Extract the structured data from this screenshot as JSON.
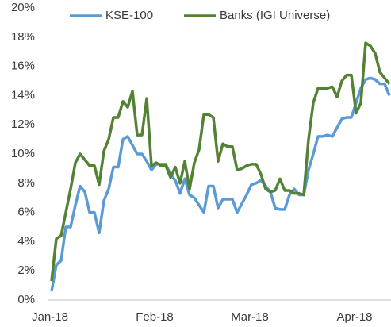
{
  "chart_data": {
    "type": "line",
    "categories": [
      "Jan-18",
      null,
      null,
      null,
      null,
      null,
      null,
      null,
      null,
      null,
      null,
      null,
      null,
      null,
      null,
      null,
      null,
      null,
      null,
      null,
      null,
      null,
      "Feb-18",
      null,
      null,
      null,
      null,
      null,
      null,
      null,
      null,
      null,
      null,
      null,
      null,
      null,
      null,
      null,
      null,
      null,
      null,
      null,
      "Mar-18",
      null,
      null,
      null,
      null,
      null,
      null,
      null,
      null,
      null,
      null,
      null,
      null,
      null,
      null,
      null,
      null,
      null,
      null,
      null,
      null,
      null,
      "Apr-18",
      null,
      null,
      null,
      null,
      null,
      null,
      null
    ],
    "series": [
      {
        "name": "KSE-100",
        "color": "#5b9bd5",
        "values": [
          0.6,
          2.4,
          2.7,
          5.0,
          5.0,
          6.5,
          7.8,
          7.4,
          6.0,
          6.0,
          4.6,
          6.8,
          7.6,
          9.1,
          9.1,
          11.0,
          11.2,
          10.6,
          10.0,
          10.0,
          9.5,
          8.9,
          9.3,
          9.3,
          9.3,
          8.6,
          8.2,
          7.3,
          8.3,
          7.2,
          7.0,
          6.5,
          6.0,
          7.8,
          7.8,
          6.3,
          6.9,
          6.9,
          6.9,
          6.0,
          6.6,
          7.2,
          7.9,
          8.0,
          8.2,
          7.8,
          7.4,
          6.3,
          6.2,
          6.2,
          7.2,
          7.6,
          7.2,
          7.2,
          8.9,
          10.0,
          11.2,
          11.2,
          11.3,
          11.2,
          11.8,
          12.4,
          12.5,
          12.5,
          13.5,
          14.5,
          15.1,
          15.2,
          15.1,
          14.8,
          14.8,
          14.0
        ]
      },
      {
        "name": "Banks (IGI Universe)",
        "color": "#548235",
        "values": [
          1.3,
          4.2,
          4.4,
          6.0,
          7.6,
          9.4,
          10.0,
          9.6,
          9.2,
          9.2,
          7.9,
          10.2,
          11.0,
          12.5,
          12.5,
          13.6,
          13.2,
          14.3,
          11.3,
          11.3,
          13.8,
          9.2,
          9.4,
          9.2,
          9.2,
          8.4,
          9.1,
          8.0,
          9.5,
          7.6,
          9.4,
          10.3,
          12.7,
          12.7,
          12.5,
          9.5,
          10.7,
          10.5,
          10.5,
          8.9,
          9.0,
          9.2,
          9.3,
          9.3,
          8.6,
          7.6,
          7.4,
          7.5,
          8.3,
          7.5,
          7.5,
          7.3,
          7.3,
          7.2,
          11.0,
          13.5,
          14.5,
          14.5,
          14.5,
          14.6,
          13.9,
          15.0,
          15.4,
          15.4,
          12.8,
          13.5,
          17.6,
          17.4,
          16.9,
          15.6,
          15.2,
          14.8
        ]
      }
    ],
    "ylim": [
      0,
      20
    ],
    "yticks": [
      {
        "value": 0,
        "label": "0%"
      },
      {
        "value": 2,
        "label": "2%"
      },
      {
        "value": 4,
        "label": "4%"
      },
      {
        "value": 6,
        "label": "6%"
      },
      {
        "value": 8,
        "label": "8%"
      },
      {
        "value": 10,
        "label": "10%"
      },
      {
        "value": 12,
        "label": "12%"
      },
      {
        "value": 14,
        "label": "14%"
      },
      {
        "value": 16,
        "label": "16%"
      },
      {
        "value": 18,
        "label": "18%"
      },
      {
        "value": 20,
        "label": "20%"
      }
    ],
    "grid": false,
    "legend": "top"
  }
}
